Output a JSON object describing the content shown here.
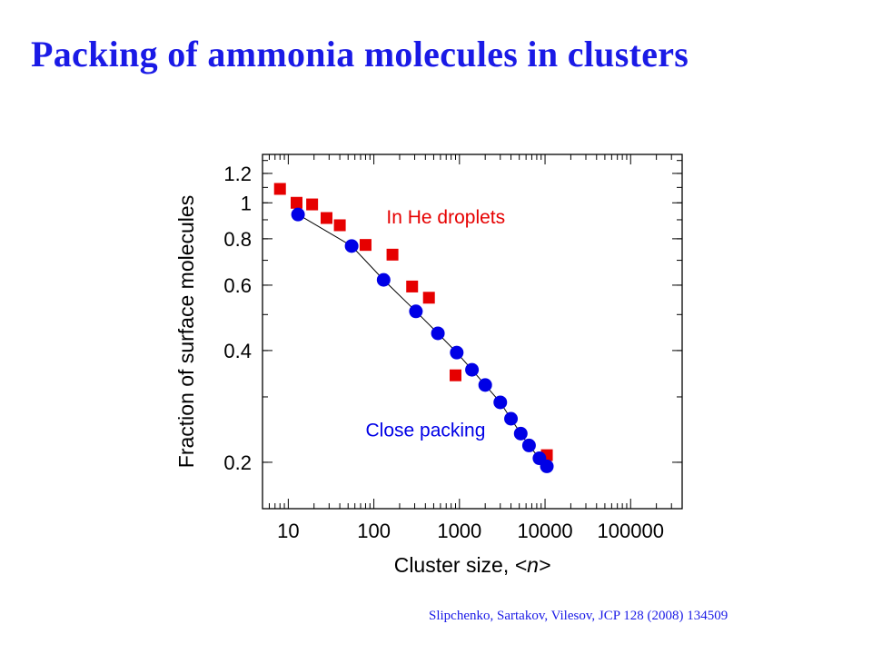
{
  "slide": {
    "title": "Packing of ammonia molecules in clusters",
    "title_color": "#1a1ae6",
    "citation": "Slipchenko, Sartakov, Vilesov, JCP 128 (2008) 134509",
    "citation_color": "#1a1ae6"
  },
  "chart_data": {
    "type": "scatter",
    "xlabel_prefix": "Cluster size, ",
    "xlabel_var": "<n>",
    "ylabel": "Fraction of surface molecules",
    "x_scale": "log",
    "y_scale": "log",
    "xlim": [
      5,
      400000
    ],
    "ylim": [
      0.15,
      1.35
    ],
    "x_ticks": [
      {
        "value": 10,
        "label": "10"
      },
      {
        "value": 100,
        "label": "100"
      },
      {
        "value": 1000,
        "label": "1000"
      },
      {
        "value": 10000,
        "label": "10000"
      },
      {
        "value": 100000,
        "label": "100000"
      }
    ],
    "y_ticks": [
      {
        "value": 0.2,
        "label": "0.2"
      },
      {
        "value": 0.4,
        "label": "0.4"
      },
      {
        "value": 0.6,
        "label": "0.6"
      },
      {
        "value": 0.8,
        "label": "0.8"
      },
      {
        "value": 1.0,
        "label": "1"
      },
      {
        "value": 1.2,
        "label": "1.2"
      }
    ],
    "grid": false,
    "series": [
      {
        "name": "In He droplets",
        "marker": "square",
        "color": "#e60000",
        "points": [
          {
            "x": 8,
            "y": 1.09
          },
          {
            "x": 12.5,
            "y": 1.0
          },
          {
            "x": 19,
            "y": 0.99
          },
          {
            "x": 28,
            "y": 0.91
          },
          {
            "x": 40,
            "y": 0.87
          },
          {
            "x": 80,
            "y": 0.77
          },
          {
            "x": 165,
            "y": 0.725
          },
          {
            "x": 280,
            "y": 0.595
          },
          {
            "x": 440,
            "y": 0.555
          },
          {
            "x": 900,
            "y": 0.343
          },
          {
            "x": 10500,
            "y": 0.209
          }
        ]
      },
      {
        "name": "Close packing",
        "marker": "circle",
        "color": "#0000e6",
        "points": [
          {
            "x": 13,
            "y": 0.93
          },
          {
            "x": 55,
            "y": 0.765
          },
          {
            "x": 130,
            "y": 0.62
          },
          {
            "x": 310,
            "y": 0.51
          },
          {
            "x": 560,
            "y": 0.445
          },
          {
            "x": 930,
            "y": 0.395
          },
          {
            "x": 1400,
            "y": 0.355
          },
          {
            "x": 2000,
            "y": 0.323
          },
          {
            "x": 3000,
            "y": 0.29
          },
          {
            "x": 4000,
            "y": 0.262
          },
          {
            "x": 5200,
            "y": 0.239
          },
          {
            "x": 6500,
            "y": 0.222
          },
          {
            "x": 8600,
            "y": 0.205
          },
          {
            "x": 10500,
            "y": 0.195
          }
        ]
      }
    ],
    "fit_line": {
      "color": "#000000",
      "points": [
        {
          "x": 13,
          "y": 0.93
        },
        {
          "x": 55,
          "y": 0.765
        },
        {
          "x": 130,
          "y": 0.62
        },
        {
          "x": 310,
          "y": 0.51
        },
        {
          "x": 560,
          "y": 0.445
        },
        {
          "x": 930,
          "y": 0.395
        },
        {
          "x": 1400,
          "y": 0.355
        },
        {
          "x": 2000,
          "y": 0.323
        },
        {
          "x": 3000,
          "y": 0.29
        },
        {
          "x": 4000,
          "y": 0.262
        },
        {
          "x": 5200,
          "y": 0.239
        },
        {
          "x": 6500,
          "y": 0.222
        },
        {
          "x": 8600,
          "y": 0.205
        },
        {
          "x": 10500,
          "y": 0.195
        }
      ]
    },
    "annotations": [
      {
        "text": "In He droplets",
        "color": "#e60000",
        "x": 140,
        "y": 0.88
      },
      {
        "text": "Close packing",
        "color": "#0000e6",
        "x": 80,
        "y": 0.235
      }
    ]
  }
}
